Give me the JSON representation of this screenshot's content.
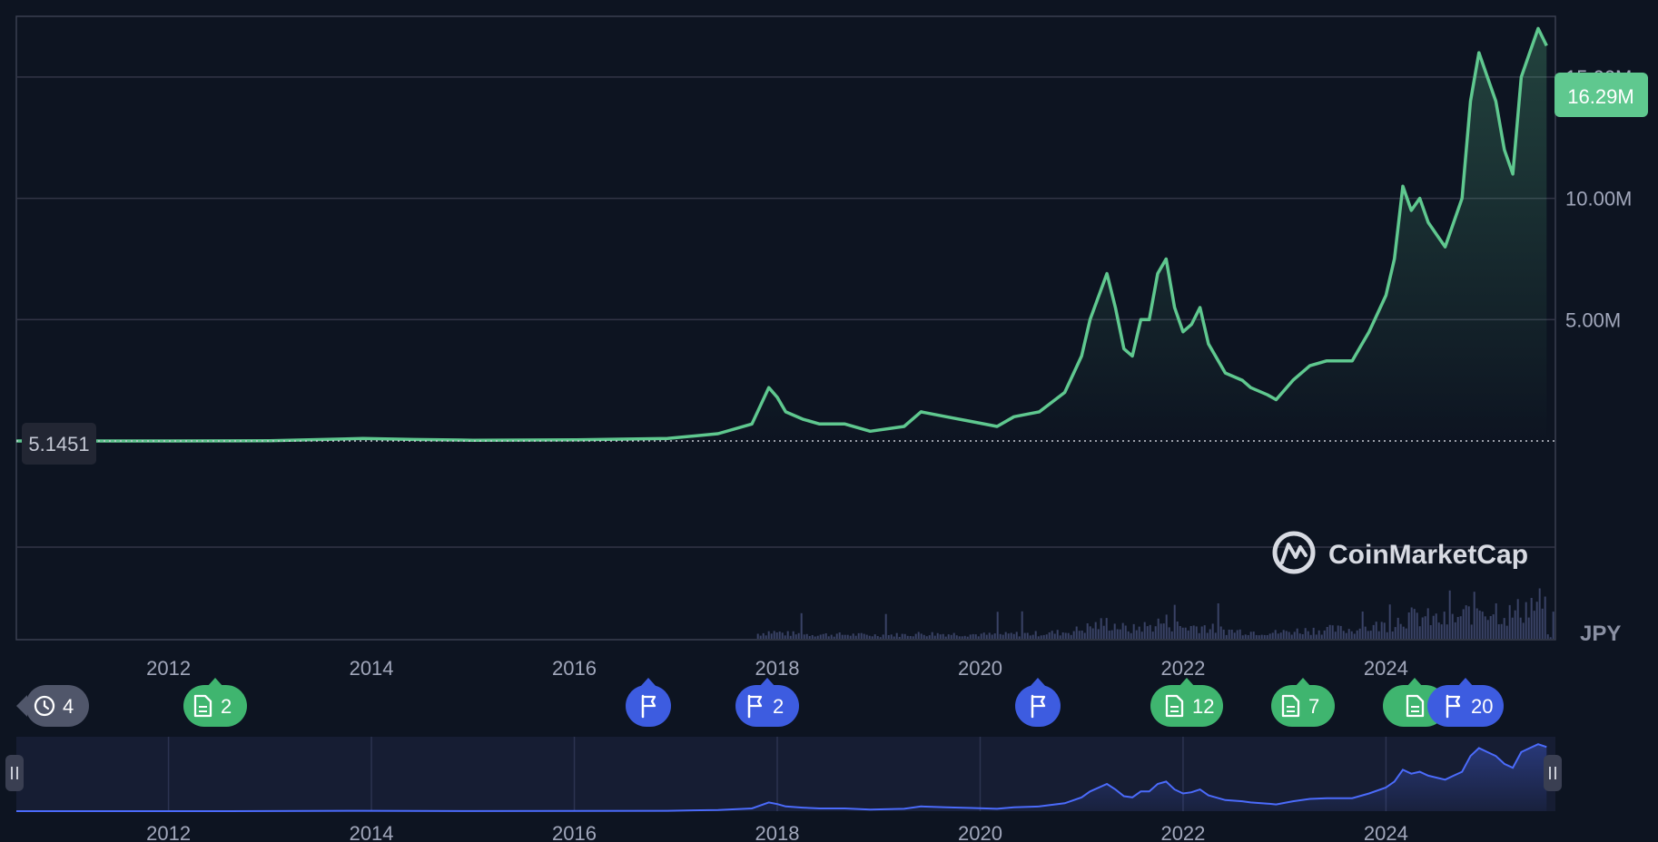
{
  "chart_data": {
    "type": "area",
    "currency": "JPY",
    "series": [
      {
        "x": [
          "2010-07",
          "2011-06",
          "2012-01",
          "2013-01",
          "2013-12",
          "2014-06",
          "2015-01",
          "2016-01",
          "2016-12",
          "2017-06",
          "2017-10",
          "2017-12",
          "2018-01",
          "2018-02",
          "2018-04",
          "2018-06",
          "2018-09",
          "2018-12",
          "2019-04",
          "2019-06",
          "2019-09",
          "2019-12",
          "2020-03",
          "2020-05",
          "2020-08",
          "2020-11",
          "2021-01",
          "2021-02",
          "2021-04",
          "2021-05",
          "2021-06",
          "2021-07",
          "2021-08",
          "2021-09",
          "2021-10",
          "2021-11",
          "2021-12",
          "2022-01",
          "2022-02",
          "2022-03",
          "2022-04",
          "2022-06",
          "2022-08",
          "2022-09",
          "2022-11",
          "2022-12",
          "2023-02",
          "2023-04",
          "2023-06",
          "2023-09",
          "2023-11",
          "2024-01",
          "2024-02",
          "2024-03",
          "2024-04",
          "2024-05",
          "2024-06",
          "2024-07",
          "2024-08",
          "2024-09",
          "2024-10",
          "2024-11",
          "2024-12",
          "2025-01",
          "2025-02",
          "2025-03",
          "2025-04",
          "2025-05",
          "2025-06",
          "2025-07",
          "2025-08"
        ],
        "values": [
          5.1451,
          5.1451,
          700,
          13000,
          100000,
          60000,
          30000,
          45000,
          100000,
          300000,
          700000,
          2200000,
          1800000,
          1200000,
          900000,
          700000,
          700000,
          400000,
          600000,
          1200000,
          1000000,
          800000,
          600000,
          1000000,
          1200000,
          2000000,
          3500000,
          5000000,
          6900000,
          5500000,
          3800000,
          3500000,
          5000000,
          5000000,
          6900000,
          7500000,
          5500000,
          4500000,
          4800000,
          5500000,
          4000000,
          2800000,
          2500000,
          2200000,
          1900000,
          1700000,
          2500000,
          3100000,
          3300000,
          3300000,
          4500000,
          6000000,
          7500000,
          10500000,
          9500000,
          10000000,
          9000000,
          8500000,
          8000000,
          9000000,
          10000000,
          14000000,
          16000000,
          15000000,
          14000000,
          12000000,
          11000000,
          15000000,
          16000000,
          17000000,
          16290000
        ]
      }
    ],
    "y_ticks": [
      "5.00M",
      "10.00M",
      "15.00M"
    ],
    "x_ticks": [
      "2012",
      "2014",
      "2016",
      "2018",
      "2020",
      "2022",
      "2024"
    ],
    "ylim": [
      0,
      17500000
    ],
    "current_price_label": "16.29M",
    "open_price_label": "5.1451",
    "grid": true
  },
  "watermark": {
    "text": "CoinMarketCap"
  },
  "markers": [
    {
      "kind": "history",
      "icon": "history-icon",
      "label": "4"
    },
    {
      "kind": "doc",
      "icon": "document-icon",
      "label": "2"
    },
    {
      "kind": "flag",
      "icon": "flag-icon",
      "label": ""
    },
    {
      "kind": "flag",
      "icon": "flag-icon",
      "label": "2"
    },
    {
      "kind": "flag",
      "icon": "flag-icon",
      "label": ""
    },
    {
      "kind": "doc",
      "icon": "document-icon",
      "label": "12"
    },
    {
      "kind": "doc",
      "icon": "document-icon",
      "label": "7"
    },
    {
      "kind": "doc",
      "icon": "document-icon",
      "label": ""
    },
    {
      "kind": "flag",
      "icon": "flag-icon",
      "label": "20"
    }
  ],
  "colors": {
    "background": "#0d1421",
    "line": "#5fc88f",
    "nav_line": "#4b6bfb",
    "grid": "#323546",
    "price_badge": "#5fc88f",
    "doc_marker": "#3fb56f",
    "flag_marker": "#3d5ce0",
    "history_marker": "#50566a",
    "volume": "#3a4366"
  }
}
